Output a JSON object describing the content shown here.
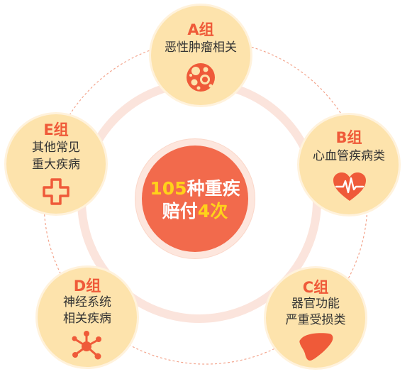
{
  "center": {
    "line1": {
      "hl": "105",
      "rest": "种重疾"
    },
    "line2": {
      "rest": "赔付",
      "hl": "4次"
    }
  },
  "groups": [
    {
      "id": "a",
      "name": "A组",
      "desc": [
        "恶性肿瘤相关"
      ],
      "icon": "tumor-cell-icon"
    },
    {
      "id": "b",
      "name": "B组",
      "desc": [
        "心血管疾病类"
      ],
      "icon": "heart-pulse-icon"
    },
    {
      "id": "c",
      "name": "C组",
      "desc": [
        "器官功能",
        "严重受损类"
      ],
      "icon": "liver-icon"
    },
    {
      "id": "d",
      "name": "D组",
      "desc": [
        "神经系统",
        "相关疾病"
      ],
      "icon": "neuron-icon"
    },
    {
      "id": "e",
      "name": "E组",
      "desc": [
        "其他常见",
        "重大疾病"
      ],
      "icon": "medical-cross-icon"
    }
  ],
  "colors": {
    "accent": "#ef5a39",
    "circle_fill": "#fde3ac",
    "center_fill": "#f26a4c",
    "highlight": "#ffd21a",
    "ring": "#fbe4dc",
    "dashed": "#f3a48c"
  }
}
